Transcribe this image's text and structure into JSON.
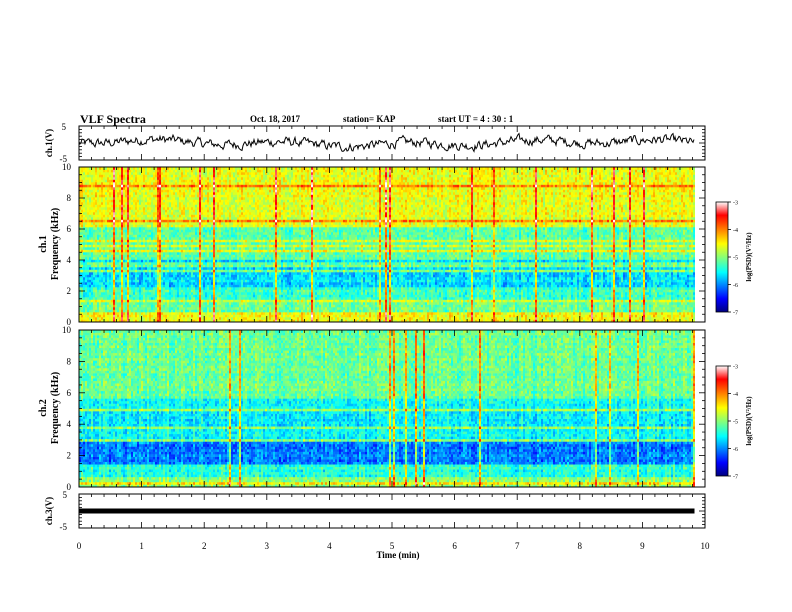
{
  "header": {
    "title": "VLF Spectra",
    "date": "Oct. 18, 2017",
    "station": "station= KAP",
    "start": "start  UT =   4 : 30 : 1"
  },
  "chart_data": [
    {
      "type": "line",
      "panel": "ch1-waveform",
      "ylabel": "ch.1(V)",
      "ylim": [
        -5,
        5
      ],
      "yticks": [
        "5",
        "-5"
      ],
      "xlim": [
        0,
        10
      ],
      "description_values": {
        "mean": 0,
        "amplitude": 1.3
      },
      "line_color": "#000000"
    },
    {
      "type": "heatmap",
      "panel": "ch1-spectrogram",
      "ylabel_top": "ch.1",
      "ylabel": "Frequency (kHz)",
      "ylim": [
        0,
        10
      ],
      "yticks": [
        "0",
        "2",
        "4",
        "6",
        "8",
        "10"
      ],
      "xlim": [
        0,
        10
      ],
      "data_end_min": 9.8,
      "colorbar": {
        "label": "log(PSD)(V²/Hz)",
        "range": [
          -7,
          -3
        ],
        "ticks": [
          "-3",
          "-4",
          "-5",
          "-6",
          "-7"
        ]
      }
    },
    {
      "type": "heatmap",
      "panel": "ch2-spectrogram",
      "ylabel_top": "ch.2",
      "ylabel": "Frequency (kHz)",
      "ylim": [
        0,
        10
      ],
      "yticks": [
        "0",
        "2",
        "4",
        "6",
        "8",
        "10"
      ],
      "xlim": [
        0,
        10
      ],
      "data_end_min": 9.8,
      "colorbar": {
        "label": "log(PSD)(V²/Hz)",
        "range": [
          -7,
          -3
        ],
        "ticks": [
          "-3",
          "-4",
          "-5",
          "-6",
          "-7"
        ]
      }
    },
    {
      "type": "line",
      "panel": "ch3-waveform",
      "ylabel": "ch.3(V)",
      "ylim": [
        -5,
        5
      ],
      "yticks": [
        "5",
        "-5"
      ],
      "xlabel": "Time  (min)",
      "xlim": [
        0,
        10
      ],
      "xticks": [
        "0",
        "1",
        "2",
        "3",
        "4",
        "5",
        "6",
        "7",
        "8",
        "9",
        "10"
      ],
      "constant_value": 0,
      "line_color": "#000000"
    }
  ]
}
